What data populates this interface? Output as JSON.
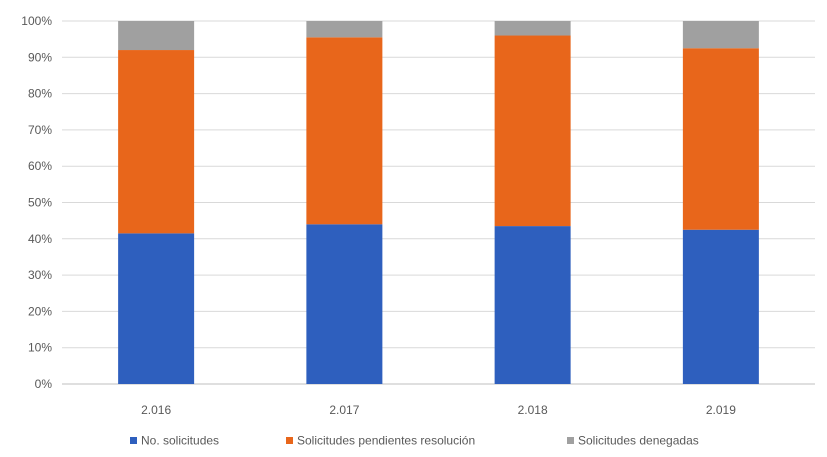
{
  "chart_data": {
    "type": "bar",
    "stacked": true,
    "normalized": true,
    "categories": [
      "2.016",
      "2.017",
      "2.018",
      "2.019"
    ],
    "series": [
      {
        "name": "No. solicitudes",
        "color": "#2E5FBE",
        "values": [
          41.5,
          44.0,
          43.5,
          42.5
        ]
      },
      {
        "name": "Solicitudes pendientes resolución",
        "color": "#E8661B",
        "values": [
          50.5,
          51.5,
          52.5,
          50.0
        ]
      },
      {
        "name": "Solicitudes denegadas",
        "color": "#A0A0A0",
        "values": [
          8.0,
          4.5,
          4.0,
          7.5
        ]
      }
    ],
    "y_ticks": [
      "0%",
      "10%",
      "20%",
      "30%",
      "40%",
      "50%",
      "60%",
      "70%",
      "80%",
      "90%",
      "100%"
    ],
    "ylim": [
      0,
      100
    ],
    "grid": true,
    "legend_position": "bottom"
  }
}
